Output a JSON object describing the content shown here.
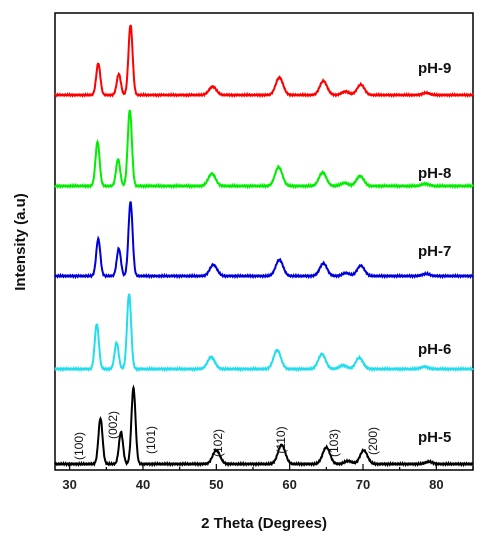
{
  "chart_data": {
    "type": "line",
    "title": "",
    "xlabel": "2 Theta (Degrees)",
    "ylabel": "Intensity (a.u)",
    "xlim": [
      28,
      85
    ],
    "xticks": [
      30,
      40,
      50,
      60,
      70,
      80
    ],
    "y_tick_labels": false,
    "grid": false,
    "legend": "labels at right of each stacked trace",
    "peaks": [
      {
        "two_theta": 31.8,
        "hkl": "(100)"
      },
      {
        "two_theta": 34.4,
        "hkl": "(002)"
      },
      {
        "two_theta": 36.3,
        "hkl": "(101)"
      },
      {
        "two_theta": 47.5,
        "hkl": "(102)"
      },
      {
        "two_theta": 56.6,
        "hkl": "(110)"
      },
      {
        "two_theta": 62.9,
        "hkl": "(103)"
      },
      {
        "two_theta": 67.9,
        "hkl": "(200)"
      }
    ],
    "series": [
      {
        "name": "pH-9",
        "color": "#ff0000",
        "peak_positions": [
          33.9,
          36.7,
          38.3,
          49.5,
          58.6,
          64.6,
          67.6,
          69.7,
          78.6
        ],
        "relative_intensity": [
          0.45,
          0.3,
          1.0,
          0.12,
          0.25,
          0.2,
          0.05,
          0.15,
          0.03
        ]
      },
      {
        "name": "pH-8",
        "color": "#00ee00",
        "peak_positions": [
          33.8,
          36.6,
          38.2,
          49.4,
          58.5,
          64.5,
          67.5,
          69.6,
          78.5
        ],
        "relative_intensity": [
          0.58,
          0.35,
          1.0,
          0.16,
          0.25,
          0.18,
          0.04,
          0.13,
          0.03
        ]
      },
      {
        "name": "pH-7",
        "color": "#0000dd",
        "peak_positions": [
          33.9,
          36.7,
          38.3,
          49.6,
          58.6,
          64.6,
          67.7,
          69.7,
          78.6
        ],
        "relative_intensity": [
          0.5,
          0.37,
          1.0,
          0.15,
          0.22,
          0.17,
          0.04,
          0.14,
          0.03
        ]
      },
      {
        "name": "pH-6",
        "color": "#22ddee",
        "peak_positions": [
          33.7,
          36.4,
          38.1,
          49.3,
          58.3,
          64.4,
          67.3,
          69.5,
          78.4
        ],
        "relative_intensity": [
          0.6,
          0.35,
          1.0,
          0.16,
          0.25,
          0.2,
          0.05,
          0.15,
          0.03
        ]
      },
      {
        "name": "pH-5",
        "color": "#000000",
        "peak_positions": [
          34.2,
          37.0,
          38.7,
          50.0,
          58.9,
          65.0,
          68.0,
          70.1,
          79.0
        ],
        "relative_intensity": [
          0.6,
          0.42,
          1.0,
          0.18,
          0.25,
          0.22,
          0.04,
          0.18,
          0.03
        ]
      }
    ]
  }
}
